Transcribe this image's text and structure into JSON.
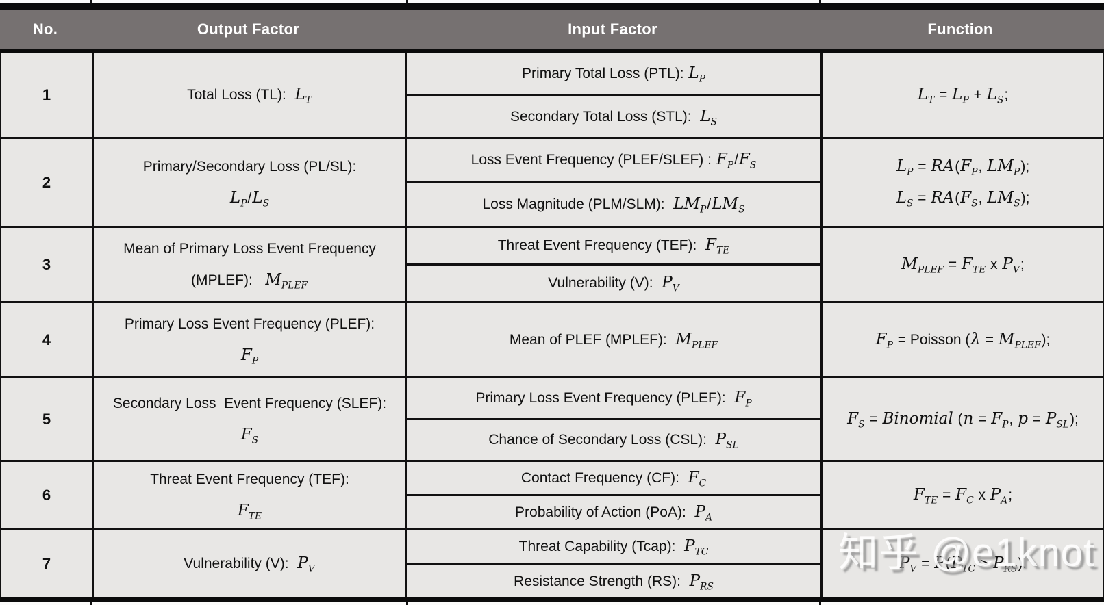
{
  "colors": {
    "header_bg": "#767171",
    "header_text": "#ffffff",
    "cell_bg": "#e8e7e5",
    "border": "#111111",
    "watermark_shadow": "#919191"
  },
  "watermark": {
    "text": "知乎 @e1knot"
  },
  "table": {
    "headers": [
      "No.",
      "Output Factor",
      "Input Factor",
      "Function"
    ],
    "rows": [
      {
        "no": "1",
        "output": "Total Loss (TL):  {L_T}",
        "inputs": [
          "Primary Total Loss (PTL): {L_P}",
          "Secondary Total Loss (STL):  {L_S}"
        ],
        "function": "{L_T} = {L_P} + {L_S};"
      },
      {
        "no": "2",
        "output": "Primary/Secondary Loss (PL/SL):\n{L_P}/{L_S}",
        "inputs": [
          "Loss Event Frequency (PLEF/SLEF) : {F_P}/{F_S}",
          "Loss Magnitude (PLM/SLM):  {LM_P}/{LM_S}"
        ],
        "function": "{L_P} = {RA}({F_P}, {LM_P});\n{L_S} = {RA}({F_S}, {LM_S});"
      },
      {
        "no": "3",
        "output": "Mean of Primary Loss Event Frequency\n(MPLEF):   {M_PLEF}",
        "inputs": [
          "Threat Event Frequency (TEF):  {F_TE}",
          "Vulnerability (V):  {P_V}"
        ],
        "function": "{M_PLEF} = {F_TE} x {P_V};"
      },
      {
        "no": "4",
        "output": "Primary Loss Event Frequency (PLEF):\n{F_P}",
        "inputs": [
          "Mean of PLEF (MPLEF):  {M_PLEF}"
        ],
        "function": "{F_P} = Poisson ({λ} = {M_PLEF});"
      },
      {
        "no": "5",
        "output": "Secondary Loss  Event Frequency (SLEF):\n{F_S}",
        "inputs": [
          "Primary Loss Event Frequency (PLEF):  {F_P}",
          "Chance of Secondary Loss (CSL):  {P_SL}"
        ],
        "function": "{F_S} = {Binomial} ({n} = {F_P}, {p} = {P_SL});"
      },
      {
        "no": "6",
        "output": "Threat Event Frequency (TEF):\n{F_TE}",
        "inputs": [
          "Contact Frequency (CF):  {F_C}",
          "Probability of Action (PoA):  {P_A}"
        ],
        "function": "{F_TE} = {F_C} x {P_A};"
      },
      {
        "no": "7",
        "output": "Vulnerability (V):  {P_V}",
        "inputs": [
          "Threat Capability (Tcap):  {P_TC}",
          "Resistance Strength (RS):  {P_RS}"
        ],
        "function": "{P_V} = {P}({P_TC} > {P_RS})."
      }
    ]
  }
}
